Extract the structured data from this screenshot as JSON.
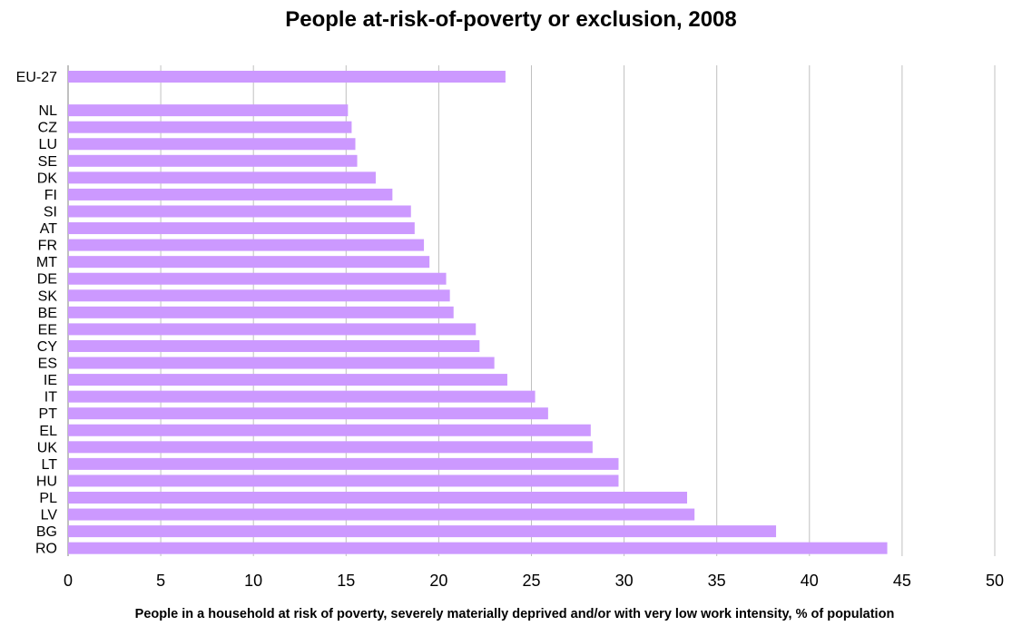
{
  "chart_data": {
    "type": "bar",
    "orientation": "horizontal",
    "title": "People at-risk-of-poverty or exclusion, 2008",
    "xlabel": "People in a household at risk of poverty, severely materially deprived and/or with very low work intensity, % of population",
    "ylabel": "",
    "xlim": [
      0,
      50
    ],
    "xticks": [
      0,
      5,
      10,
      15,
      20,
      25,
      30,
      35,
      40,
      45,
      50
    ],
    "grid": "vertical",
    "legend": "none",
    "bar_color": "#cc99ff",
    "categories": [
      "EU-27",
      "NL",
      "CZ",
      "LU",
      "SE",
      "DK",
      "FI",
      "SI",
      "AT",
      "FR",
      "MT",
      "DE",
      "SK",
      "BE",
      "EE",
      "CY",
      "ES",
      "IE",
      "IT",
      "PT",
      "EL",
      "UK",
      "LT",
      "HU",
      "PL",
      "LV",
      "BG",
      "RO"
    ],
    "values": [
      23.6,
      15.1,
      15.3,
      15.5,
      15.6,
      16.6,
      17.5,
      18.5,
      18.7,
      19.2,
      19.5,
      20.4,
      20.6,
      20.8,
      22.0,
      22.2,
      23.0,
      23.7,
      25.2,
      25.9,
      28.2,
      28.3,
      29.7,
      29.7,
      33.4,
      33.8,
      38.2,
      44.2
    ]
  }
}
